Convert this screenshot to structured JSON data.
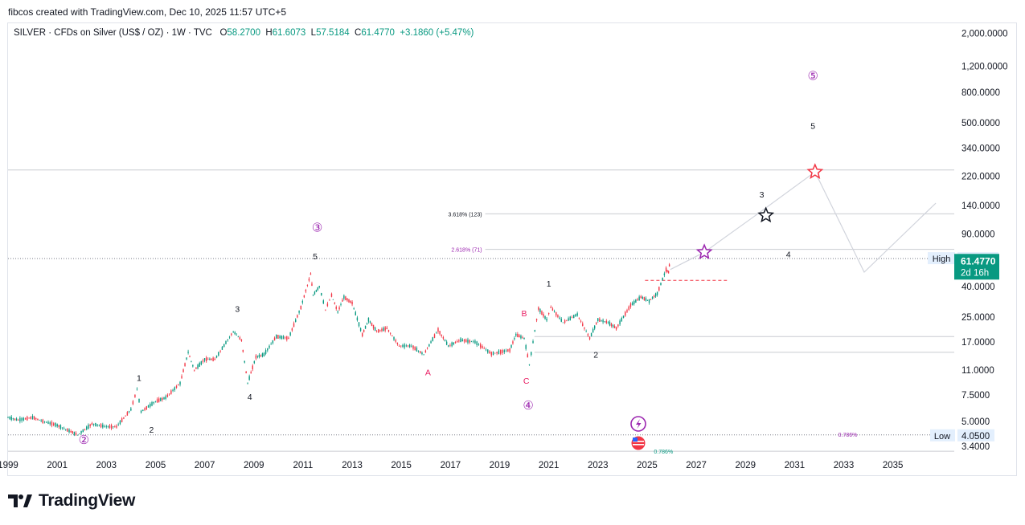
{
  "header": {
    "credit": "fibcos created with TradingView.com, Dec 10, 2025 11:57 UTC+5"
  },
  "legend": {
    "symbol": "SILVER · CFDs on Silver (US$ / OZ) · 1W · TVC",
    "o_label": "O",
    "o_value": "58.2700",
    "h_label": "H",
    "h_value": "61.6073",
    "l_label": "L",
    "l_value": "57.5184",
    "c_label": "C",
    "c_value": "61.4770",
    "change": "+3.1860 (+5.47%)"
  },
  "brand": {
    "name": "TradingView"
  },
  "colors": {
    "up": "#089981",
    "down": "#f23645",
    "purple": "#9c27b0",
    "pink": "#e91e63",
    "star_red": "#f23645",
    "price_badge": "#089981",
    "high_low_badge": "#e3effd"
  },
  "chart_data": {
    "type": "line",
    "title": "",
    "xlabel": "",
    "ylabel": "",
    "y_scale": "log",
    "ylim": [
      3.0,
      2300
    ],
    "xlim": [
      "1999-01-01",
      "2037-07-01"
    ],
    "x_ticks": [
      "1999",
      "2001",
      "2003",
      "2005",
      "2007",
      "2009",
      "2011",
      "2013",
      "2015",
      "2017",
      "2019",
      "2021",
      "2023",
      "2025",
      "2027",
      "2029",
      "2031",
      "2033",
      "2035"
    ],
    "y_ticks": [
      "2,000.0000",
      "1,200.0000",
      "800.0000",
      "500.0000",
      "340.0000",
      "220.0000",
      "140.0000",
      "90.0000",
      "40.0000",
      "25.0000",
      "17.0000",
      "11.0000",
      "7.5000",
      "5.0000",
      "3.4000"
    ],
    "series": [
      {
        "values_shape": "weekly price path (approx.)",
        "points": [
          [
            "1999-01-01",
            5.3
          ],
          [
            "1999-06-01",
            5.1
          ],
          [
            "2000-01-01",
            5.3
          ],
          [
            "2000-06-01",
            5.0
          ],
          [
            "2001-01-01",
            4.7
          ],
          [
            "2001-11-01",
            4.05
          ],
          [
            "2002-06-01",
            4.8
          ],
          [
            "2003-01-01",
            4.6
          ],
          [
            "2003-06-01",
            4.6
          ],
          [
            "2004-01-01",
            6.0
          ],
          [
            "2004-04-01",
            8.2
          ],
          [
            "2004-06-01",
            5.8
          ],
          [
            "2005-01-01",
            6.8
          ],
          [
            "2005-06-01",
            7.2
          ],
          [
            "2006-01-01",
            9.0
          ],
          [
            "2006-05-01",
            14.5
          ],
          [
            "2006-08-01",
            11.0
          ],
          [
            "2007-01-01",
            13.0
          ],
          [
            "2007-06-01",
            13.0
          ],
          [
            "2008-03-01",
            20.0
          ],
          [
            "2008-07-01",
            17.5
          ],
          [
            "2008-10-01",
            9.0
          ],
          [
            "2009-02-01",
            13.5
          ],
          [
            "2009-06-01",
            14.0
          ],
          [
            "2009-12-01",
            18.5
          ],
          [
            "2010-06-01",
            18.0
          ],
          [
            "2010-12-01",
            29.0
          ],
          [
            "2011-04-25",
            48.5
          ],
          [
            "2011-06-01",
            35.0
          ],
          [
            "2011-09-01",
            40.0
          ],
          [
            "2011-12-01",
            28.0
          ],
          [
            "2012-03-01",
            35.0
          ],
          [
            "2012-06-01",
            27.0
          ],
          [
            "2012-09-01",
            34.0
          ],
          [
            "2013-01-01",
            31.0
          ],
          [
            "2013-06-01",
            19.0
          ],
          [
            "2013-09-01",
            24.0
          ],
          [
            "2014-01-01",
            20.0
          ],
          [
            "2014-06-01",
            21.0
          ],
          [
            "2014-12-01",
            16.0
          ],
          [
            "2015-06-01",
            16.0
          ],
          [
            "2015-12-01",
            14.0
          ],
          [
            "2016-07-01",
            20.5
          ],
          [
            "2016-12-01",
            16.0
          ],
          [
            "2017-06-01",
            17.5
          ],
          [
            "2018-01-01",
            17.0
          ],
          [
            "2018-09-01",
            14.2
          ],
          [
            "2019-06-01",
            15.0
          ],
          [
            "2019-09-01",
            19.0
          ],
          [
            "2020-01-01",
            18.0
          ],
          [
            "2020-03-18",
            12.0
          ],
          [
            "2020-08-01",
            28.5
          ],
          [
            "2020-12-01",
            24.0
          ],
          [
            "2021-02-01",
            29.0
          ],
          [
            "2021-08-01",
            23.0
          ],
          [
            "2022-03-01",
            26.0
          ],
          [
            "2022-09-01",
            18.0
          ],
          [
            "2023-01-01",
            24.0
          ],
          [
            "2023-06-01",
            23.0
          ],
          [
            "2023-10-01",
            21.0
          ],
          [
            "2024-05-01",
            30.0
          ],
          [
            "2024-10-01",
            34.0
          ],
          [
            "2025-02-01",
            32.0
          ],
          [
            "2025-06-01",
            36.0
          ],
          [
            "2025-10-10",
            52.0
          ],
          [
            "2025-11-15",
            50.0
          ],
          [
            "2025-12-10",
            61.477
          ]
        ]
      }
    ],
    "projection_path": [
      [
        "2025-12-10",
        52.0
      ],
      [
        "2027-05-01",
        68.0
      ],
      [
        "2029-06-01",
        120.0
      ],
      [
        "2031-11-01",
        235.0
      ],
      [
        "2033-11-01",
        50.0
      ],
      [
        "2036-10-01",
        145.0
      ]
    ],
    "horizontal_levels": [
      {
        "value": 242,
        "label": ""
      },
      {
        "value": 123,
        "label": "3.618% (123)"
      },
      {
        "value": 71,
        "label": "2.618% (71)"
      },
      {
        "value": 61.6073,
        "label": "High",
        "dotted": true
      },
      {
        "value": 18.5,
        "label": ""
      },
      {
        "value": 14.5,
        "label": ""
      },
      {
        "value": 4.05,
        "label": "Low",
        "dotted": true
      },
      {
        "value": 3.15,
        "label": ""
      }
    ],
    "fib_labels": [
      {
        "x": "2025-09-01",
        "y": 3.15,
        "text": "0.786%"
      },
      {
        "x": "2033-03-01",
        "y": 4.1,
        "text": "0.786%"
      }
    ],
    "red_dashed_level": {
      "x_start": "2024-12-01",
      "x_end": "2028-04-01",
      "value": 44.0
    },
    "wave_labels": [
      {
        "x": "2002-02-01",
        "y": 3.7,
        "text": "②",
        "color": "purple",
        "circled": true
      },
      {
        "x": "2004-05-01",
        "y": 9.8,
        "text": "1",
        "color": "black"
      },
      {
        "x": "2004-11-01",
        "y": 4.4,
        "text": "2",
        "color": "black"
      },
      {
        "x": "2008-05-01",
        "y": 28.5,
        "text": "3",
        "color": "black"
      },
      {
        "x": "2008-11-01",
        "y": 7.3,
        "text": "4",
        "color": "black"
      },
      {
        "x": "2011-07-01",
        "y": 64.0,
        "text": "5",
        "color": "black"
      },
      {
        "x": "2011-08-01",
        "y": 98.0,
        "text": "③",
        "color": "purple",
        "circled": true
      },
      {
        "x": "2016-02-01",
        "y": 10.7,
        "text": "A",
        "color": "pink"
      },
      {
        "x": "2020-01-01",
        "y": 26.5,
        "text": "B",
        "color": "pink"
      },
      {
        "x": "2020-02-01",
        "y": 9.4,
        "text": "C",
        "color": "pink"
      },
      {
        "x": "2020-03-01",
        "y": 6.3,
        "text": "④",
        "color": "purple",
        "circled": true
      },
      {
        "x": "2021-01-01",
        "y": 42.0,
        "text": "1",
        "color": "black"
      },
      {
        "x": "2022-12-01",
        "y": 14.0,
        "text": "2",
        "color": "black"
      },
      {
        "x": "2029-09-01",
        "y": 166.0,
        "text": "3",
        "color": "black"
      },
      {
        "x": "2030-10-01",
        "y": 66.0,
        "text": "4",
        "color": "black"
      },
      {
        "x": "2031-10-01",
        "y": 480.0,
        "text": "5",
        "color": "black"
      },
      {
        "x": "2031-10-01",
        "y": 1020.0,
        "text": "⑤",
        "color": "purple",
        "circled": true
      }
    ],
    "stars": [
      {
        "x": "2027-05-01",
        "y": 68.0,
        "color": "purple"
      },
      {
        "x": "2029-11-01",
        "y": 120.0,
        "color": "black"
      },
      {
        "x": "2031-11-01",
        "y": 235.0,
        "color": "red"
      }
    ],
    "price_tags": {
      "high_label": "High",
      "high_value": "61.6073",
      "last_value": "61.4770",
      "countdown": "2d 16h",
      "low_label": "Low",
      "low_value": "4.0500"
    }
  }
}
